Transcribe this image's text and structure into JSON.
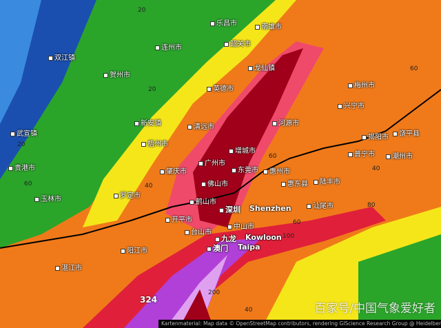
{
  "map": {
    "type": "precipitation-forecast",
    "colors": {
      "low": "#1a4fb0",
      "green": "#2aa52a",
      "yellow": "#f5e61a",
      "orange": "#f07a1a",
      "red": "#e0203a",
      "darkred": "#a0001a",
      "purple": "#b040d8"
    },
    "cities": [
      "双江镇",
      "贺州市",
      "连州市",
      "乐昌市",
      "韶关市",
      "南雄市",
      "英德市",
      "龙仙镇",
      "清远市",
      "新安镇",
      "梧州市",
      "武宣镇",
      "贵港市",
      "罗定市",
      "玉林市",
      "肇庆市",
      "广州市",
      "佛山市",
      "鹤山市",
      "增城市",
      "东莞市",
      "惠州市",
      "惠东县",
      "陆丰市",
      "汕尾市",
      "河源市",
      "梅州市",
      "兴宁市",
      "揭阳市",
      "普宁市",
      "饶平县",
      "潮州市",
      "深圳",
      "Shenzhen",
      "九龙",
      "Kowloon",
      "中山市",
      "澳门",
      "Taipa",
      "开平市",
      "台山市",
      "阳江市",
      "湛江市"
    ],
    "contour_labels": [
      "20",
      "20",
      "20",
      "40",
      "40",
      "40",
      "60",
      "60",
      "60",
      "60",
      "80",
      "100",
      "200",
      "324"
    ],
    "watermark": "百家号/中国气象爱好者",
    "attribution": "Kartenmaterial: Map data © OpenStreetMap contributors, rendering GIScience Research Group @ Heidelberg University"
  }
}
